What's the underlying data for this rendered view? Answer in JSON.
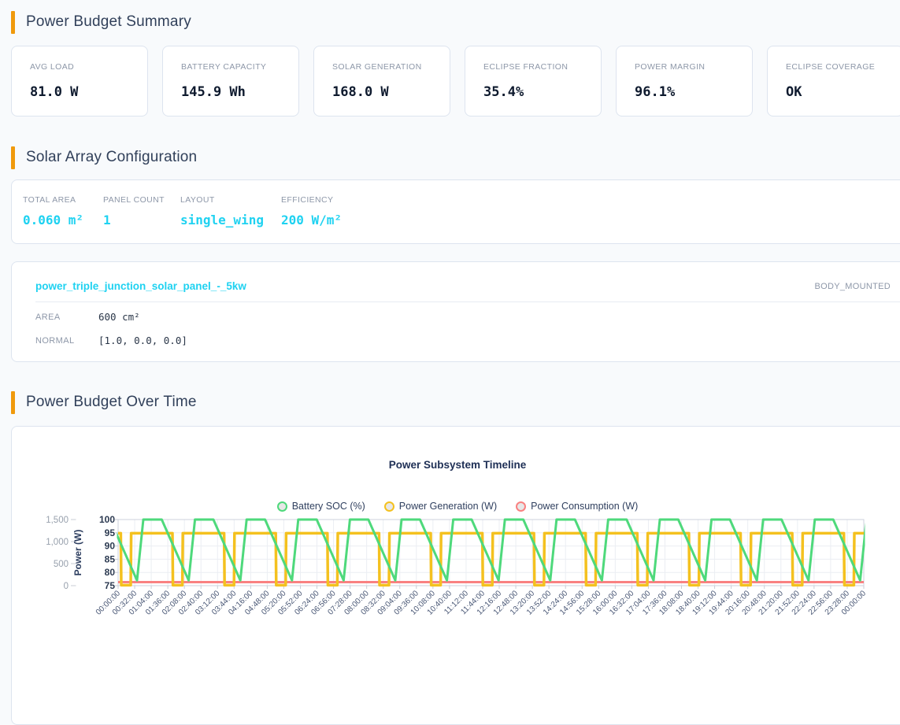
{
  "sections": {
    "summary": {
      "title": "Power Budget Summary",
      "cards": [
        {
          "label": "AVG LOAD",
          "value": "81.0 W"
        },
        {
          "label": "BATTERY CAPACITY",
          "value": "145.9 Wh"
        },
        {
          "label": "SOLAR GENERATION",
          "value": "168.0 W"
        },
        {
          "label": "ECLIPSE FRACTION",
          "value": "35.4%"
        },
        {
          "label": "POWER MARGIN",
          "value": "96.1%"
        },
        {
          "label": "ECLIPSE COVERAGE",
          "value": "OK"
        }
      ]
    },
    "solar": {
      "title": "Solar Array Configuration",
      "stats": [
        {
          "label": "TOTAL AREA",
          "value": "0.060 m²"
        },
        {
          "label": "PANEL COUNT",
          "value": "1"
        },
        {
          "label": "LAYOUT",
          "value": "single_wing"
        },
        {
          "label": "EFFICIENCY",
          "value": "200 W/m²"
        }
      ],
      "panel": {
        "name": "power_triple_junction_solar_panel_-_5kw",
        "mount": "BODY_MOUNTED",
        "rows": [
          {
            "label": "AREA",
            "value": "600 cm²"
          },
          {
            "label": "NORMAL",
            "value": "[1.0, 0.0, 0.0]"
          }
        ]
      }
    },
    "timeline": {
      "title": "Power Budget Over Time"
    }
  },
  "chart_data": {
    "type": "line",
    "title": "Power Subsystem Timeline",
    "legend": [
      {
        "label": "Battery SOC (%)",
        "color": "#4ed97b"
      },
      {
        "label": "Power Generation (W)",
        "color": "#f4c11f"
      },
      {
        "label": "Power Consumption (W)",
        "color": "#f98181"
      }
    ],
    "x_labels": [
      "00:00:00",
      "00:32:00",
      "01:04:00",
      "01:36:00",
      "02:08:00",
      "02:40:00",
      "03:12:00",
      "03:44:00",
      "04:16:00",
      "04:48:00",
      "05:20:00",
      "05:52:00",
      "06:24:00",
      "06:56:00",
      "07:28:00",
      "08:00:00",
      "08:32:00",
      "09:04:00",
      "09:36:00",
      "10:08:00",
      "10:40:00",
      "11:12:00",
      "11:44:00",
      "12:16:00",
      "12:48:00",
      "13:20:00",
      "13:52:00",
      "14:24:00",
      "14:56:00",
      "15:28:00",
      "16:00:00",
      "16:32:00",
      "17:04:00",
      "17:36:00",
      "18:08:00",
      "18:40:00",
      "19:12:00",
      "19:44:00",
      "20:16:00",
      "20:48:00",
      "21:20:00",
      "21:52:00",
      "22:24:00",
      "22:56:00",
      "23:28:00",
      "00:00:00"
    ],
    "x_range_min": [
      0,
      1440
    ],
    "y_axes": {
      "power": {
        "title": "Power (W)",
        "range": [
          0,
          1500
        ],
        "ticks": [
          {
            "v": 1500,
            "label": "1,500"
          },
          {
            "v": 1000,
            "label": "1,000"
          },
          {
            "v": 500,
            "label": "500"
          },
          {
            "v": 0,
            "label": "0"
          }
        ]
      },
      "soc": {
        "range": [
          75,
          100
        ],
        "ticks": [
          {
            "v": 100,
            "label": "100"
          },
          {
            "v": 95,
            "label": "95"
          },
          {
            "v": 90,
            "label": "90"
          },
          {
            "v": 85,
            "label": "85"
          },
          {
            "v": 80,
            "label": "80"
          },
          {
            "v": 75,
            "label": "75"
          }
        ]
      }
    },
    "series": [
      {
        "name": "Power Consumption (W)",
        "axis": "power",
        "color": "#f98181",
        "width": 3,
        "points": [
          [
            0,
            81
          ],
          [
            1440,
            81
          ]
        ]
      },
      {
        "name": "Power Generation (W)",
        "axis": "power",
        "color": "#f4c11f",
        "width": 3.5,
        "periodic": {
          "period_min": 99.75,
          "k_from": 0,
          "k_to": 15,
          "pattern": [
            [
              0,
              1190
            ],
            [
              5.1,
              1190
            ],
            [
              6.1,
              10
            ],
            [
              24.3,
              10
            ],
            [
              25.3,
              1190
            ],
            [
              99.75,
              1190
            ]
          ]
        }
      },
      {
        "name": "Battery SOC (%)",
        "axis": "soc",
        "color": "#4ed97b",
        "width": 3,
        "periodic": {
          "period_min": 99.75,
          "k_from": -1,
          "k_to": 15,
          "pattern": [
            [
              -15.5,
              100
            ],
            [
              36.5,
              77
            ],
            [
              48.7,
              100
            ]
          ]
        }
      }
    ]
  }
}
